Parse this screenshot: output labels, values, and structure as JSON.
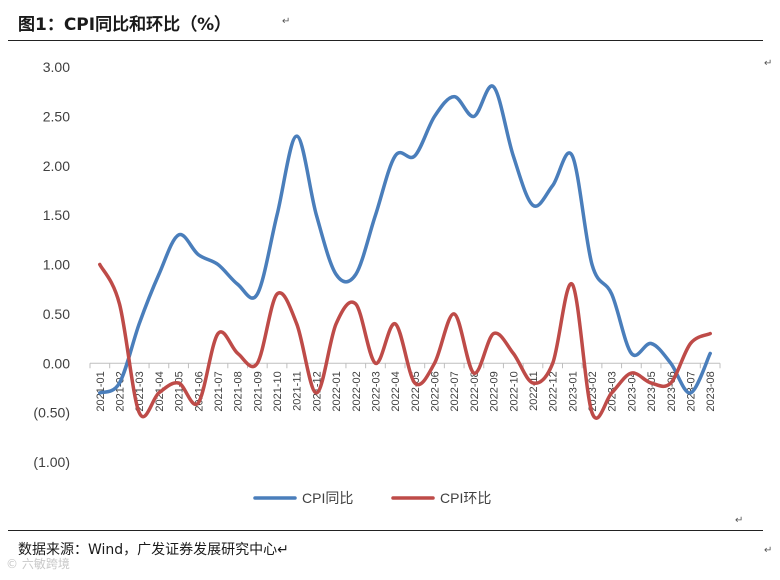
{
  "header": {
    "title": "图1：CPI同比和环比（%）",
    "para_mark": "↵"
  },
  "footer": {
    "source": "数据来源：Wind，广发证券发展研究中心↵",
    "watermark": "© 六敏跨境"
  },
  "colors": {
    "yoy": "#4a7ebb",
    "mom": "#be4b48",
    "axis": "#bfbfbf",
    "text": "#404040"
  },
  "chart_data": {
    "type": "line",
    "title": "",
    "xlabel": "",
    "ylabel": "",
    "ylim": [
      -1.0,
      3.0
    ],
    "yticks": [
      "3.00",
      "2.50",
      "2.00",
      "1.50",
      "1.00",
      "0.50",
      "0.00",
      "(0.50)",
      "(1.00)"
    ],
    "grid": false,
    "legend": "bottom",
    "categories": [
      "2021-01",
      "2021-02",
      "2021-03",
      "2021-04",
      "2021-05",
      "2021-06",
      "2021-07",
      "2021-08",
      "2021-09",
      "2021-10",
      "2021-11",
      "2021-12",
      "2022-01",
      "2022-02",
      "2022-03",
      "2022-04",
      "2022-05",
      "2022-06",
      "2022-07",
      "2022-08",
      "2022-09",
      "2022-10",
      "2022-11",
      "2022-12",
      "2023-01",
      "2023-02",
      "2023-03",
      "2023-04",
      "2023-05",
      "2023-06",
      "2023-07",
      "2023-08"
    ],
    "series": [
      {
        "name": "CPI同比",
        "values": [
          -0.3,
          -0.2,
          0.4,
          0.9,
          1.3,
          1.1,
          1.0,
          0.8,
          0.7,
          1.5,
          2.3,
          1.5,
          0.9,
          0.9,
          1.5,
          2.1,
          2.1,
          2.5,
          2.7,
          2.5,
          2.8,
          2.1,
          1.6,
          1.8,
          2.1,
          1.0,
          0.7,
          0.1,
          0.2,
          0.0,
          -0.3,
          0.1
        ]
      },
      {
        "name": "CPI环比",
        "values": [
          1.0,
          0.6,
          -0.5,
          -0.3,
          -0.2,
          -0.4,
          0.3,
          0.1,
          0.0,
          0.7,
          0.4,
          -0.3,
          0.4,
          0.6,
          0.0,
          0.4,
          -0.2,
          0.0,
          0.5,
          -0.1,
          0.3,
          0.1,
          -0.2,
          0.0,
          0.8,
          -0.5,
          -0.3,
          -0.1,
          -0.2,
          -0.2,
          0.2,
          0.3
        ]
      }
    ]
  }
}
